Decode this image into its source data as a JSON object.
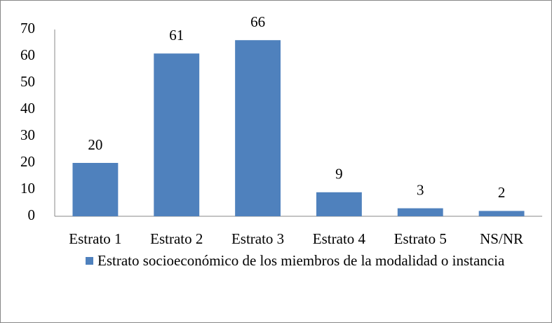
{
  "chart_data": {
    "type": "bar",
    "categories": [
      "Estrato 1",
      "Estrato 2",
      "Estrato 3",
      "Estrato 4",
      "Estrato 5",
      "NS/NR"
    ],
    "series": [
      {
        "name": "Estrato socioeconómico de los miembros de la modalidad o instancia",
        "color": "#4f81bd",
        "values": [
          20,
          61,
          66,
          9,
          3,
          2
        ]
      }
    ],
    "ylim": [
      0,
      70
    ],
    "yticks": [
      0,
      10,
      20,
      30,
      40,
      50,
      60,
      70
    ],
    "grid": false,
    "legend": "bottom"
  }
}
